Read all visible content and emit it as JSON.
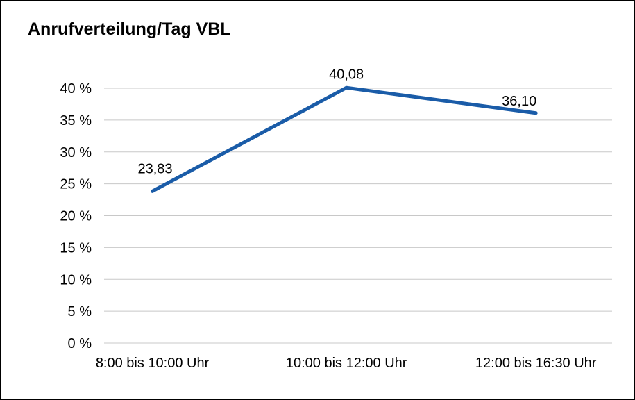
{
  "chart_data": {
    "type": "line",
    "title": "Anrufverteilung/Tag VBL",
    "categories": [
      "8:00 bis 10:00 Uhr",
      "10:00 bis 12:00 Uhr",
      "12:00 bis 16:30 Uhr"
    ],
    "values": [
      23.83,
      40.08,
      36.1
    ],
    "value_labels": [
      "23,83",
      "40,08",
      "36,10"
    ],
    "xlabel": "",
    "ylabel": "",
    "ylim": [
      0,
      40
    ],
    "y_tick_step": 5,
    "y_tick_labels": [
      "0 %",
      "5 %",
      "10 %",
      "15 %",
      "20 %",
      "25 %",
      "30 %",
      "35 %",
      "40 %"
    ],
    "grid": "horizontal",
    "legend": "none",
    "line_color": "#1a5ca8",
    "grid_color": "#c8c8c8",
    "text_color": "#000000",
    "background": "#ffffff",
    "border_color": "#000000"
  }
}
